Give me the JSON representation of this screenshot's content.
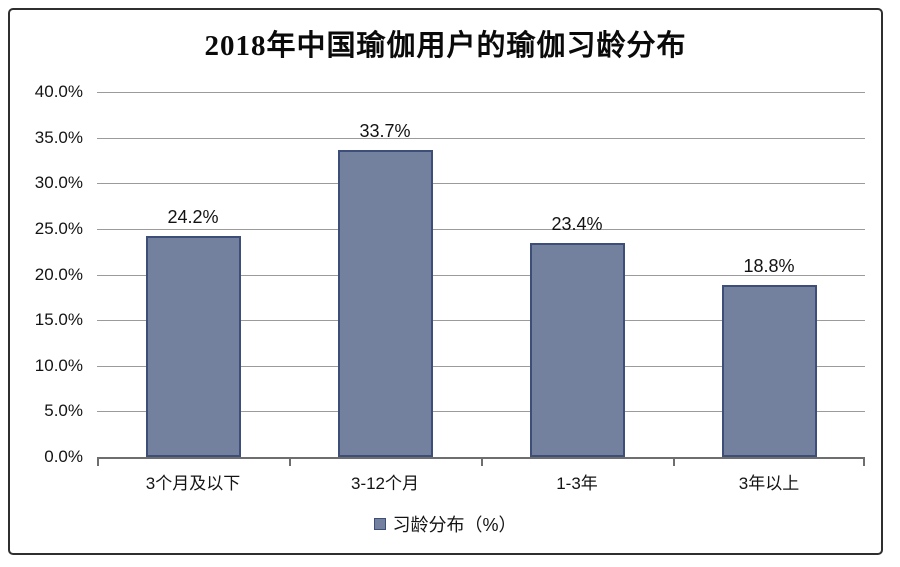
{
  "frame": {
    "background": "#ffffff",
    "border_color": "#2f2f2f"
  },
  "chart_data": {
    "type": "bar",
    "title": "2018年中国瑜伽用户的瑜伽习龄分布",
    "categories": [
      "3个月及以下",
      "3-12个月",
      "1-3年",
      "3年以上"
    ],
    "series": [
      {
        "name": "习龄分布（%）",
        "values": [
          24.2,
          33.7,
          23.4,
          18.8
        ],
        "value_labels": [
          "24.2%",
          "33.7%",
          "23.4%",
          "18.8%"
        ]
      }
    ],
    "xlabel": "",
    "ylabel": "",
    "ylim": [
      0,
      40
    ],
    "ytick_step": 5,
    "ytick_labels": [
      "0.0%",
      "5.0%",
      "10.0%",
      "15.0%",
      "20.0%",
      "25.0%",
      "30.0%",
      "35.0%",
      "40.0%"
    ],
    "grid": true,
    "legend": {
      "label": "习龄分布（%）",
      "position": "bottom"
    },
    "colors": {
      "bar_fill": "#73809E",
      "bar_border": "#3D4E79",
      "gridline": "#9b9b9b",
      "axis": "#6e6e6e",
      "text": "#141414"
    }
  }
}
